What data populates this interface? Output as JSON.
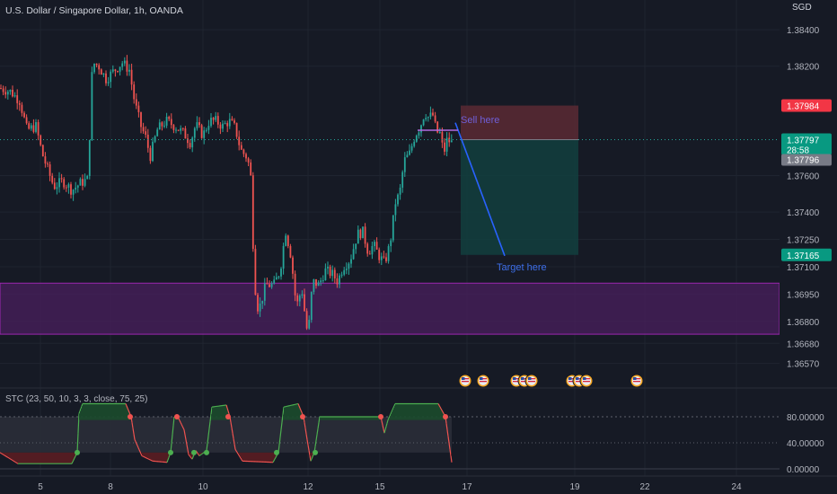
{
  "header": {
    "title": "U.S. Dollar / Singapore Dollar, 1h, OANDA"
  },
  "price_axis": {
    "currency": "SGD",
    "ticks": [
      "1.38400",
      "1.38200",
      "1.37600",
      "1.37400",
      "1.37250",
      "1.37100",
      "1.36950",
      "1.36800",
      "1.36680",
      "1.36570"
    ]
  },
  "price_labels": {
    "stop": {
      "text": "1.37984",
      "color": "#f23645"
    },
    "last": {
      "text": "1.37797",
      "color": "#089981"
    },
    "countdown": {
      "text": "28:58"
    },
    "bid": {
      "text": "1.37796",
      "color": "#787b86"
    },
    "target": {
      "text": "1.37165",
      "color": "#089981"
    }
  },
  "annotations": {
    "sell": "Sell here",
    "target": "Target here"
  },
  "indicator": {
    "label": "STC (23, 50, 10, 3, 3, close, 75, 25)",
    "ticks": [
      "80.00000",
      "40.00000",
      "0.00000"
    ]
  },
  "time_axis": {
    "ticks": [
      "5",
      "8",
      "10",
      "12",
      "15",
      "17",
      "19",
      "22",
      "24"
    ]
  },
  "colors": {
    "background": "#161a25",
    "up": "#26a69a",
    "down": "#ef5350",
    "zone": "#4a1f5e",
    "sell_zone": "#5a2a34",
    "target_zone": "#12403e",
    "projection": "#2962ff",
    "annotation": "#3d6ee8"
  },
  "icons": [
    "us-flag-icon"
  ],
  "chart_data": {
    "type": "candlestick",
    "symbol": "USDSGD",
    "title": "U.S. Dollar / Singapore Dollar, 1h, OANDA",
    "currency": "SGD",
    "x_ticks": [
      "5",
      "8",
      "10",
      "12",
      "15",
      "17",
      "19",
      "22",
      "24"
    ],
    "y_ticks": [
      1.384,
      1.382,
      1.376,
      1.374,
      1.3725,
      1.371,
      1.3695,
      1.368,
      1.3668,
      1.3657
    ],
    "price_path": [
      [
        0,
        1.3808
      ],
      [
        12,
        1.3806
      ],
      [
        22,
        1.3801
      ],
      [
        30,
        1.3785
      ],
      [
        40,
        1.3787
      ],
      [
        47,
        1.3772
      ],
      [
        54,
        1.3762
      ],
      [
        60,
        1.3754
      ],
      [
        70,
        1.3757
      ],
      [
        80,
        1.3752
      ],
      [
        90,
        1.3756
      ],
      [
        98,
        1.3758
      ],
      [
        101,
        1.3798
      ],
      [
        103,
        1.3822
      ],
      [
        110,
        1.382
      ],
      [
        118,
        1.3813
      ],
      [
        128,
        1.3818
      ],
      [
        136,
        1.3822
      ],
      [
        144,
        1.3818
      ],
      [
        150,
        1.38
      ],
      [
        157,
        1.3787
      ],
      [
        163,
        1.378
      ],
      [
        167,
        1.377
      ],
      [
        175,
        1.3785
      ],
      [
        185,
        1.379
      ],
      [
        195,
        1.3787
      ],
      [
        205,
        1.3783
      ],
      [
        212,
        1.3778
      ],
      [
        218,
        1.3788
      ],
      [
        226,
        1.3782
      ],
      [
        233,
        1.379
      ],
      [
        240,
        1.379
      ],
      [
        248,
        1.3787
      ],
      [
        255,
        1.379
      ],
      [
        262,
        1.3786
      ],
      [
        268,
        1.3774
      ],
      [
        275,
        1.377
      ],
      [
        279,
        1.3762
      ],
      [
        282,
        1.372
      ],
      [
        285,
        1.3692
      ],
      [
        288,
        1.3686
      ],
      [
        296,
        1.37
      ],
      [
        305,
        1.37
      ],
      [
        312,
        1.3708
      ],
      [
        318,
        1.373
      ],
      [
        324,
        1.3716
      ],
      [
        330,
        1.3688
      ],
      [
        336,
        1.3698
      ],
      [
        341,
        1.3678
      ],
      [
        343,
        1.3672
      ],
      [
        348,
        1.3702
      ],
      [
        355,
        1.37
      ],
      [
        362,
        1.3708
      ],
      [
        370,
        1.3706
      ],
      [
        376,
        1.3702
      ],
      [
        382,
        1.371
      ],
      [
        390,
        1.3714
      ],
      [
        398,
        1.3728
      ],
      [
        404,
        1.3729
      ],
      [
        410,
        1.3718
      ],
      [
        416,
        1.3722
      ],
      [
        422,
        1.3716
      ],
      [
        428,
        1.3712
      ],
      [
        432,
        1.3718
      ],
      [
        436,
        1.3728
      ],
      [
        440,
        1.3745
      ],
      [
        445,
        1.375
      ],
      [
        450,
        1.3768
      ],
      [
        456,
        1.3772
      ],
      [
        462,
        1.3782
      ],
      [
        468,
        1.3787
      ],
      [
        473,
        1.3795
      ],
      [
        477,
        1.3792
      ],
      [
        482,
        1.3793
      ],
      [
        486,
        1.3784
      ],
      [
        490,
        1.3783
      ],
      [
        494,
        1.3772
      ],
      [
        498,
        1.378
      ],
      [
        502,
        1.3778
      ]
    ],
    "support_zone": {
      "from": 1.3701,
      "to": 1.3673
    },
    "trade": {
      "entry": 1.37797,
      "stop": 1.37984,
      "target": 1.37165,
      "sell_label": "Sell here",
      "target_label": "Target here"
    },
    "last_price": 1.37797,
    "bid_price": 1.37796,
    "indicator": {
      "name": "STC",
      "label": "STC (23, 50, 10, 3, 3, close, 75, 25)",
      "levels": [
        80,
        40,
        0
      ],
      "upper_band": 75,
      "lower_band": 25,
      "path": [
        [
          0,
          25
        ],
        [
          20,
          8
        ],
        [
          80,
          8
        ],
        [
          86,
          25
        ],
        [
          88,
          85
        ],
        [
          92,
          100
        ],
        [
          140,
          100
        ],
        [
          146,
          80
        ],
        [
          150,
          45
        ],
        [
          158,
          20
        ],
        [
          170,
          12
        ],
        [
          186,
          10
        ],
        [
          190,
          25
        ],
        [
          194,
          80
        ],
        [
          198,
          80
        ],
        [
          205,
          60
        ],
        [
          210,
          22
        ],
        [
          214,
          15
        ],
        [
          218,
          28
        ],
        [
          222,
          20
        ],
        [
          226,
          24
        ],
        [
          230,
          28
        ],
        [
          236,
          95
        ],
        [
          252,
          98
        ],
        [
          256,
          80
        ],
        [
          262,
          30
        ],
        [
          270,
          12
        ],
        [
          304,
          10
        ],
        [
          310,
          25
        ],
        [
          316,
          95
        ],
        [
          332,
          100
        ],
        [
          338,
          80
        ],
        [
          342,
          45
        ],
        [
          346,
          12
        ],
        [
          350,
          25
        ],
        [
          356,
          80
        ],
        [
          400,
          80
        ],
        [
          424,
          80
        ],
        [
          428,
          55
        ],
        [
          432,
          75
        ],
        [
          440,
          100
        ],
        [
          488,
          100
        ],
        [
          496,
          80
        ],
        [
          503,
          10
        ]
      ],
      "cross_down_markers": [
        145,
        197,
        254,
        337,
        424,
        496
      ],
      "cross_up_markers": [
        86,
        190,
        216,
        230,
        308,
        351
      ]
    }
  }
}
